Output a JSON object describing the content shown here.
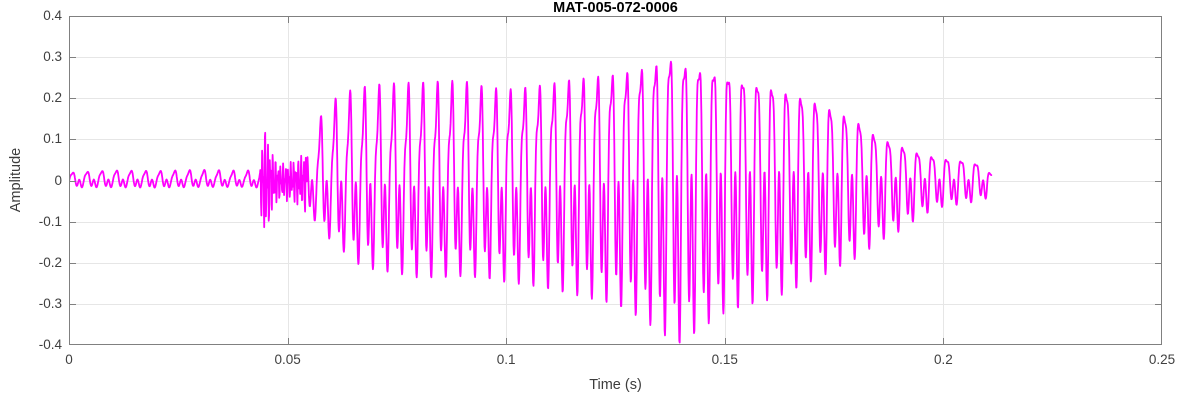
{
  "chart_data": {
    "type": "line",
    "title": "MAT-005-072-0006",
    "xlabel": "Time (s)",
    "ylabel": "Amplitude",
    "xlim": [
      0,
      0.25
    ],
    "ylim": [
      -0.4,
      0.4
    ],
    "x_ticks": [
      0,
      0.05,
      0.1,
      0.15,
      0.2,
      0.25
    ],
    "x_tick_labels": [
      "0",
      "0.05",
      "0.1",
      "0.15",
      "0.2",
      "0.25"
    ],
    "y_ticks": [
      0.4,
      0.3,
      0.2,
      0.1,
      0,
      -0.1,
      -0.2,
      -0.3,
      -0.4
    ],
    "y_tick_labels": [
      "0.4",
      "0.3",
      "0.2",
      "0.1",
      "0",
      "-0.1",
      "-0.2",
      "-0.3",
      "-0.4"
    ],
    "grid": true,
    "legend": null,
    "colors": {
      "line": "#FF00FF",
      "grid": "#E6E6E6",
      "axis_box": "#808080",
      "tick_label": "#404040",
      "axis_label": "#3D3D3D",
      "title": "#000000",
      "background": "#FFFFFF"
    },
    "signal": {
      "name": "audio-waveform",
      "duration_s": 0.211,
      "f0_hz": 300,
      "harmonics": [
        [
          1,
          0.55,
          0
        ],
        [
          2,
          0.3,
          -1.2
        ],
        [
          3,
          0.25,
          0.8
        ]
      ],
      "pos_norm": 0.73,
      "neg_norm": 0.75,
      "am_wobble": [
        6.3,
        0.25,
        1.0
      ],
      "pm_wobble": [
        4.1,
        0.6
      ],
      "noise_bands": [
        [
          0.0438,
          0.0545
        ]
      ],
      "noise_components": [
        [
          1700,
          0.55,
          0
        ],
        [
          2900,
          0.45,
          1.3
        ]
      ],
      "noise_norm": 0.85,
      "envelope": [
        [
          0.0,
          0.018,
          -0.016
        ],
        [
          0.01,
          0.022,
          -0.016
        ],
        [
          0.02,
          0.02,
          -0.017
        ],
        [
          0.03,
          0.022,
          -0.016
        ],
        [
          0.04,
          0.02,
          -0.016
        ],
        [
          0.0435,
          0.022,
          -0.018
        ],
        [
          0.0445,
          0.125,
          -0.135
        ],
        [
          0.0465,
          0.06,
          -0.07
        ],
        [
          0.048,
          0.035,
          -0.04
        ],
        [
          0.051,
          0.04,
          -0.045
        ],
        [
          0.0535,
          0.055,
          -0.06
        ],
        [
          0.056,
          0.105,
          -0.1
        ],
        [
          0.058,
          0.14,
          -0.13
        ],
        [
          0.06,
          0.165,
          -0.155
        ],
        [
          0.063,
          0.185,
          -0.185
        ],
        [
          0.066,
          0.195,
          -0.215
        ],
        [
          0.07,
          0.205,
          -0.23
        ],
        [
          0.075,
          0.21,
          -0.24
        ],
        [
          0.08,
          0.215,
          -0.25
        ],
        [
          0.085,
          0.22,
          -0.25
        ],
        [
          0.09,
          0.225,
          -0.245
        ],
        [
          0.095,
          0.215,
          -0.25
        ],
        [
          0.1,
          0.21,
          -0.26
        ],
        [
          0.105,
          0.22,
          -0.265
        ],
        [
          0.11,
          0.23,
          -0.275
        ],
        [
          0.115,
          0.245,
          -0.285
        ],
        [
          0.12,
          0.255,
          -0.295
        ],
        [
          0.125,
          0.265,
          -0.305
        ],
        [
          0.13,
          0.28,
          -0.33
        ],
        [
          0.134,
          0.295,
          -0.355
        ],
        [
          0.137,
          0.315,
          -0.375
        ],
        [
          0.14,
          0.3,
          -0.388
        ],
        [
          0.143,
          0.29,
          -0.36
        ],
        [
          0.146,
          0.285,
          -0.335
        ],
        [
          0.15,
          0.27,
          -0.305
        ],
        [
          0.155,
          0.25,
          -0.285
        ],
        [
          0.16,
          0.235,
          -0.27
        ],
        [
          0.165,
          0.215,
          -0.25
        ],
        [
          0.17,
          0.195,
          -0.225
        ],
        [
          0.175,
          0.17,
          -0.2
        ],
        [
          0.18,
          0.145,
          -0.175
        ],
        [
          0.185,
          0.105,
          -0.14
        ],
        [
          0.19,
          0.085,
          -0.115
        ],
        [
          0.195,
          0.065,
          -0.08
        ],
        [
          0.2,
          0.055,
          -0.06
        ],
        [
          0.205,
          0.05,
          -0.055
        ],
        [
          0.209,
          0.04,
          -0.045
        ],
        [
          0.211,
          0.015,
          -0.04
        ]
      ]
    }
  }
}
